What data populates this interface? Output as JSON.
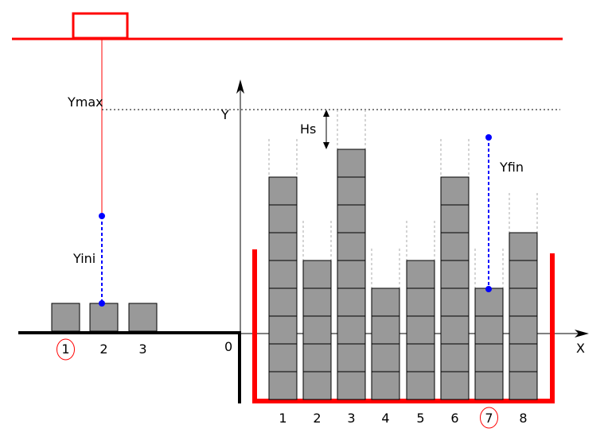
{
  "labels": {
    "ymax": "Ymax",
    "y_axis": "Y",
    "x_axis": "X",
    "hs": "Hs",
    "yfin": "Yfin",
    "yini": "Yini",
    "origin": "0"
  },
  "source_positions": [
    "1",
    "2",
    "3"
  ],
  "target_columns": [
    "1",
    "2",
    "3",
    "4",
    "5",
    "6",
    "7",
    "8"
  ],
  "stack_heights": [
    8,
    5,
    9,
    4,
    5,
    8,
    4,
    6
  ],
  "highlighted": {
    "source": "1",
    "target": "7"
  },
  "colors": {
    "crane": "#ff0000",
    "container": "#ff0000",
    "block_fill": "#999999",
    "marker": "#0000ff",
    "ground": "#000000"
  }
}
